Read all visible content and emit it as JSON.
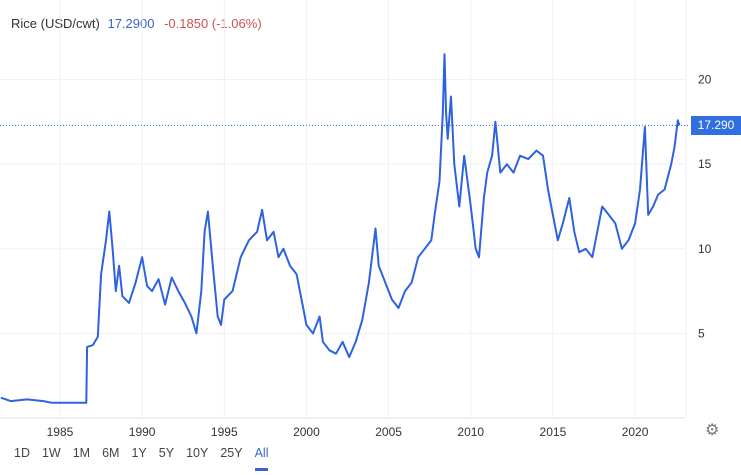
{
  "header": {
    "name": "Rice (USD/cwt)",
    "price": "17.2900",
    "change": "-0.1850 (-1.06%)"
  },
  "range_buttons": [
    "1D",
    "1W",
    "1M",
    "6M",
    "1Y",
    "5Y",
    "10Y",
    "25Y",
    "All"
  ],
  "active_range": "All",
  "last_label": "17.290",
  "colors": {
    "line": "#2f62e0",
    "grid": "#eef0f4",
    "price": "#3a64c7",
    "change": "#d2504f"
  },
  "chart_data": {
    "type": "line",
    "title": "Rice (USD/cwt)",
    "xlim": [
      1981.35,
      2023.1
    ],
    "ylim": [
      0,
      24.7
    ],
    "x_ticks": [
      "1985",
      "1990",
      "1995",
      "2000",
      "2005",
      "2010",
      "2015",
      "2020"
    ],
    "y_ticks": [
      "5",
      "10",
      "15",
      "20"
    ],
    "last_value": 17.29,
    "series": [
      {
        "name": "Rice",
        "points": [
          [
            1981.4,
            1.2
          ],
          [
            1982,
            1.0
          ],
          [
            1983,
            1.1
          ],
          [
            1984,
            1.0
          ],
          [
            1984.5,
            0.9
          ],
          [
            1986.6,
            0.9
          ],
          [
            1986.65,
            4.2
          ],
          [
            1987,
            4.3
          ],
          [
            1987.3,
            4.8
          ],
          [
            1987.5,
            8.5
          ],
          [
            1987.8,
            10.5
          ],
          [
            1988,
            12.2
          ],
          [
            1988.2,
            10
          ],
          [
            1988.4,
            7.5
          ],
          [
            1988.6,
            9
          ],
          [
            1988.8,
            7.2
          ],
          [
            1989.2,
            6.8
          ],
          [
            1989.6,
            8
          ],
          [
            1990,
            9.5
          ],
          [
            1990.3,
            7.8
          ],
          [
            1990.6,
            7.5
          ],
          [
            1991,
            8.2
          ],
          [
            1991.4,
            6.7
          ],
          [
            1991.8,
            8.3
          ],
          [
            1992.2,
            7.5
          ],
          [
            1992.6,
            6.8
          ],
          [
            1993,
            6
          ],
          [
            1993.3,
            5
          ],
          [
            1993.6,
            7.5
          ],
          [
            1993.8,
            11
          ],
          [
            1994,
            12.2
          ],
          [
            1994.3,
            9
          ],
          [
            1994.6,
            6
          ],
          [
            1994.8,
            5.5
          ],
          [
            1995,
            7
          ],
          [
            1995.5,
            7.5
          ],
          [
            1996,
            9.5
          ],
          [
            1996.5,
            10.5
          ],
          [
            1997,
            11
          ],
          [
            1997.3,
            12.3
          ],
          [
            1997.6,
            10.5
          ],
          [
            1998,
            11
          ],
          [
            1998.3,
            9.5
          ],
          [
            1998.6,
            10
          ],
          [
            1999,
            9
          ],
          [
            1999.4,
            8.5
          ],
          [
            1999.8,
            6.5
          ],
          [
            2000,
            5.5
          ],
          [
            2000.4,
            5
          ],
          [
            2000.8,
            6
          ],
          [
            2001,
            4.5
          ],
          [
            2001.4,
            4
          ],
          [
            2001.8,
            3.8
          ],
          [
            2002.2,
            4.5
          ],
          [
            2002.6,
            3.6
          ],
          [
            2003,
            4.5
          ],
          [
            2003.4,
            5.8
          ],
          [
            2003.8,
            8
          ],
          [
            2004.2,
            11.2
          ],
          [
            2004.4,
            9
          ],
          [
            2004.8,
            8
          ],
          [
            2005.2,
            7
          ],
          [
            2005.6,
            6.5
          ],
          [
            2006,
            7.5
          ],
          [
            2006.4,
            8
          ],
          [
            2006.8,
            9.5
          ],
          [
            2007.2,
            10
          ],
          [
            2007.6,
            10.5
          ],
          [
            2007.8,
            12
          ],
          [
            2008.1,
            14
          ],
          [
            2008.3,
            18
          ],
          [
            2008.4,
            21.5
          ],
          [
            2008.5,
            18
          ],
          [
            2008.6,
            16.5
          ],
          [
            2008.8,
            19
          ],
          [
            2009,
            15
          ],
          [
            2009.3,
            12.5
          ],
          [
            2009.6,
            15.5
          ],
          [
            2010,
            12.5
          ],
          [
            2010.3,
            10
          ],
          [
            2010.5,
            9.5
          ],
          [
            2010.8,
            13
          ],
          [
            2011,
            14.5
          ],
          [
            2011.3,
            15.5
          ],
          [
            2011.5,
            17.5
          ],
          [
            2011.8,
            14.5
          ],
          [
            2012.2,
            15
          ],
          [
            2012.6,
            14.5
          ],
          [
            2013,
            15.5
          ],
          [
            2013.5,
            15.3
          ],
          [
            2014,
            15.8
          ],
          [
            2014.4,
            15.5
          ],
          [
            2014.7,
            13.5
          ],
          [
            2015,
            12
          ],
          [
            2015.3,
            10.5
          ],
          [
            2015.6,
            11.5
          ],
          [
            2016,
            13
          ],
          [
            2016.3,
            11
          ],
          [
            2016.6,
            9.8
          ],
          [
            2017,
            10
          ],
          [
            2017.4,
            9.5
          ],
          [
            2017.8,
            11.5
          ],
          [
            2018,
            12.5
          ],
          [
            2018.4,
            12
          ],
          [
            2018.8,
            11.5
          ],
          [
            2019.2,
            10
          ],
          [
            2019.6,
            10.5
          ],
          [
            2020,
            11.5
          ],
          [
            2020.3,
            13.5
          ],
          [
            2020.6,
            17.2
          ],
          [
            2020.8,
            12
          ],
          [
            2021.1,
            12.5
          ],
          [
            2021.4,
            13.2
          ],
          [
            2021.8,
            13.5
          ],
          [
            2022.2,
            15
          ],
          [
            2022.4,
            16
          ],
          [
            2022.6,
            17.6
          ],
          [
            2022.7,
            17.29
          ]
        ]
      }
    ]
  }
}
